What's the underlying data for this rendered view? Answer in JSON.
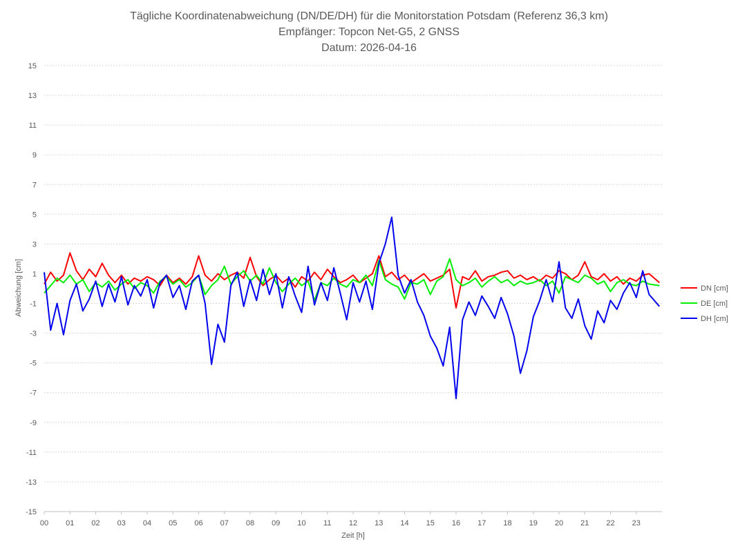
{
  "chart_data": {
    "type": "line",
    "title_lines": [
      "Tägliche Koordinatenabweichung (DN/DE/DH) für die Monitorstation Potsdam (Referenz 36,3 km)",
      "Empfänger: Topcon Net-G5, 2 GNSS",
      "Datum: 2026-04-16"
    ],
    "xlabel": "Zeit [h]",
    "ylabel": "Abweichung [cm]",
    "xlim": [
      0,
      24
    ],
    "ylim": [
      -15,
      15
    ],
    "x_ticks": [
      "00",
      "01",
      "02",
      "03",
      "04",
      "05",
      "06",
      "07",
      "08",
      "09",
      "10",
      "11",
      "12",
      "13",
      "14",
      "15",
      "16",
      "17",
      "18",
      "19",
      "20",
      "21",
      "22",
      "23"
    ],
    "y_ticks": [
      15,
      13,
      11,
      9,
      7,
      5,
      3,
      1,
      -1,
      -3,
      -5,
      -7,
      -9,
      -11,
      -13,
      -15
    ],
    "grid": "horizontal dotted",
    "legend_position": "right",
    "series": [
      {
        "name": "DN [cm]",
        "color": "#ff0000",
        "x": [
          0,
          0.25,
          0.5,
          0.75,
          1,
          1.25,
          1.5,
          1.75,
          2,
          2.25,
          2.5,
          2.75,
          3,
          3.25,
          3.5,
          3.75,
          4,
          4.25,
          4.5,
          4.75,
          5,
          5.25,
          5.5,
          5.75,
          6,
          6.25,
          6.5,
          6.75,
          7,
          7.25,
          7.5,
          7.75,
          8,
          8.25,
          8.5,
          8.75,
          9,
          9.25,
          9.5,
          9.75,
          10,
          10.25,
          10.5,
          10.75,
          11,
          11.25,
          11.5,
          11.75,
          12,
          12.25,
          12.5,
          12.75,
          13,
          13.25,
          13.5,
          13.75,
          14,
          14.25,
          14.5,
          14.75,
          15,
          15.25,
          15.5,
          15.75,
          16,
          16.25,
          16.5,
          16.75,
          17,
          17.25,
          17.5,
          17.75,
          18,
          18.25,
          18.5,
          18.75,
          19,
          19.25,
          19.5,
          19.75,
          20,
          20.25,
          20.5,
          20.75,
          21,
          21.25,
          21.5,
          21.75,
          22,
          22.25,
          22.5,
          22.75,
          23,
          23.25,
          23.5,
          23.9
        ],
        "values": [
          0.3,
          1.1,
          0.5,
          0.9,
          2.4,
          1.2,
          0.6,
          1.3,
          0.8,
          1.7,
          0.9,
          0.4,
          0.9,
          0.3,
          0.7,
          0.5,
          0.8,
          0.6,
          0.2,
          0.9,
          0.4,
          0.7,
          0.3,
          0.8,
          2.2,
          0.9,
          0.5,
          1.0,
          0.6,
          0.9,
          1.1,
          0.7,
          2.1,
          0.8,
          0.2,
          0.6,
          0.9,
          0.4,
          0.7,
          0.1,
          0.8,
          0.5,
          1.1,
          0.6,
          1.3,
          0.8,
          0.4,
          0.6,
          0.9,
          0.4,
          0.7,
          1.0,
          2.2,
          0.8,
          1.1,
          0.6,
          0.9,
          0.4,
          0.7,
          1.0,
          0.5,
          0.7,
          0.9,
          1.3,
          -1.3,
          0.8,
          0.6,
          1.2,
          0.5,
          0.8,
          0.9,
          1.1,
          1.2,
          0.7,
          0.9,
          0.6,
          0.8,
          0.5,
          0.9,
          0.7,
          1.2,
          1.0,
          0.6,
          0.9,
          1.8,
          0.8,
          0.6,
          1.0,
          0.5,
          0.8,
          0.3,
          0.7,
          0.5,
          0.9,
          1.0,
          0.4
        ]
      },
      {
        "name": "DE [cm]",
        "color": "#00ee00",
        "x": [
          0,
          0.25,
          0.5,
          0.75,
          1,
          1.25,
          1.5,
          1.75,
          2,
          2.25,
          2.5,
          2.75,
          3,
          3.25,
          3.5,
          3.75,
          4,
          4.25,
          4.5,
          4.75,
          5,
          5.25,
          5.5,
          5.75,
          6,
          6.25,
          6.5,
          6.75,
          7,
          7.25,
          7.5,
          7.75,
          8,
          8.25,
          8.5,
          8.75,
          9,
          9.25,
          9.5,
          9.75,
          10,
          10.25,
          10.5,
          10.75,
          11,
          11.25,
          11.5,
          11.75,
          12,
          12.25,
          12.5,
          12.75,
          13,
          13.25,
          13.5,
          13.75,
          14,
          14.25,
          14.5,
          14.75,
          15,
          15.25,
          15.5,
          15.75,
          16,
          16.25,
          16.5,
          16.75,
          17,
          17.25,
          17.5,
          17.75,
          18,
          18.25,
          18.5,
          18.75,
          19,
          19.25,
          19.5,
          19.75,
          20,
          20.25,
          20.5,
          20.75,
          21,
          21.25,
          21.5,
          21.75,
          22,
          22.25,
          22.5,
          22.75,
          23,
          23.25,
          23.5,
          23.9
        ],
        "values": [
          -0.3,
          0.2,
          0.7,
          0.4,
          0.9,
          0.3,
          0.6,
          -0.2,
          0.4,
          0.1,
          0.5,
          -0.1,
          0.3,
          0.6,
          0.0,
          0.4,
          0.2,
          -0.3,
          0.5,
          0.8,
          0.3,
          0.6,
          0.1,
          0.4,
          0.9,
          -0.4,
          0.2,
          0.6,
          1.5,
          0.3,
          0.8,
          1.2,
          0.5,
          0.9,
          0.3,
          1.4,
          0.4,
          -0.2,
          0.3,
          0.7,
          0.2,
          0.5,
          -0.8,
          0.4,
          0.2,
          0.7,
          0.3,
          0.1,
          0.6,
          0.4,
          0.9,
          0.2,
          1.9,
          0.6,
          0.3,
          0.1,
          -0.7,
          0.4,
          0.3,
          0.6,
          -0.4,
          0.5,
          0.8,
          2.0,
          0.6,
          0.2,
          0.4,
          0.7,
          0.1,
          0.5,
          0.8,
          0.4,
          0.6,
          0.2,
          0.5,
          0.3,
          0.4,
          0.6,
          0.2,
          0.5,
          -0.3,
          0.8,
          0.6,
          0.4,
          0.9,
          0.7,
          0.3,
          0.5,
          -0.2,
          0.4,
          0.6,
          0.3,
          0.2,
          0.5,
          0.3,
          0.2
        ]
      },
      {
        "name": "DH [cm]",
        "color": "#0000ee",
        "x": [
          0,
          0.25,
          0.5,
          0.75,
          1,
          1.25,
          1.5,
          1.75,
          2,
          2.25,
          2.5,
          2.75,
          3,
          3.25,
          3.5,
          3.75,
          4,
          4.25,
          4.5,
          4.75,
          5,
          5.25,
          5.5,
          5.75,
          6,
          6.25,
          6.5,
          6.75,
          7,
          7.25,
          7.5,
          7.75,
          8,
          8.25,
          8.5,
          8.75,
          9,
          9.25,
          9.5,
          9.75,
          10,
          10.25,
          10.5,
          10.75,
          11,
          11.25,
          11.5,
          11.75,
          12,
          12.25,
          12.5,
          12.75,
          13,
          13.25,
          13.5,
          13.75,
          14,
          14.25,
          14.5,
          14.75,
          15,
          15.25,
          15.5,
          15.75,
          16,
          16.25,
          16.5,
          16.75,
          17,
          17.25,
          17.5,
          17.75,
          18,
          18.25,
          18.5,
          18.75,
          19,
          19.25,
          19.5,
          19.75,
          20,
          20.25,
          20.5,
          20.75,
          21,
          21.25,
          21.5,
          21.75,
          22,
          22.25,
          22.5,
          22.75,
          23,
          23.25,
          23.5,
          23.9
        ],
        "values": [
          1.1,
          -2.8,
          -1.0,
          -3.1,
          -0.8,
          0.3,
          -1.5,
          -0.7,
          0.5,
          -1.2,
          0.3,
          -0.9,
          0.8,
          -1.1,
          0.2,
          -0.5,
          0.6,
          -1.3,
          0.4,
          0.9,
          -0.6,
          0.2,
          -1.4,
          0.5,
          0.9,
          -1.0,
          -5.1,
          -2.4,
          -3.6,
          0.2,
          1.1,
          -1.2,
          0.6,
          -0.8,
          1.3,
          -0.4,
          1.0,
          -1.3,
          0.8,
          -0.5,
          -1.6,
          1.5,
          -1.1,
          0.4,
          -0.8,
          1.4,
          -0.3,
          -2.1,
          0.4,
          -0.9,
          0.5,
          -1.4,
          1.7,
          3.0,
          4.8,
          0.9,
          -0.3,
          0.6,
          -0.9,
          -1.8,
          -3.2,
          -4.0,
          -5.2,
          -2.6,
          -7.4,
          -2.1,
          -0.9,
          -1.8,
          -0.5,
          -1.2,
          -2.0,
          -0.6,
          -1.7,
          -3.2,
          -5.7,
          -4.2,
          -1.9,
          -0.8,
          0.6,
          -0.9,
          1.8,
          -1.3,
          -2.0,
          -0.7,
          -2.5,
          -3.4,
          -1.5,
          -2.3,
          -0.8,
          -1.4,
          -0.3,
          0.4,
          -0.6,
          1.2,
          -0.4,
          -1.2
        ]
      }
    ]
  }
}
